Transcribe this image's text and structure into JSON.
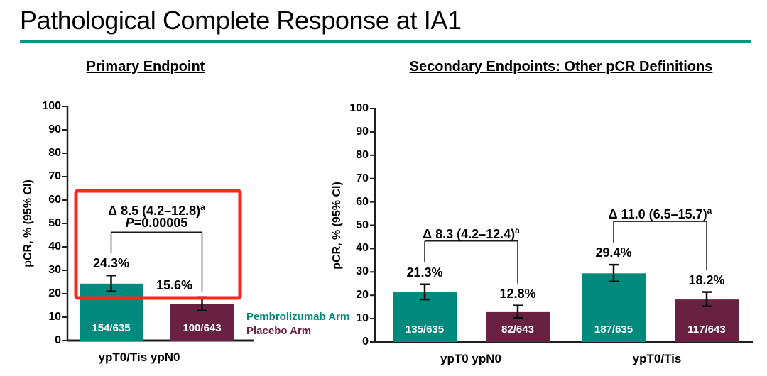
{
  "page": {
    "title": "Pathological Complete Response at IA1"
  },
  "colors": {
    "pembrolizumab_teal": "#008A7E",
    "placebo_maroon": "#682140",
    "title_rule_teal": "#0E8E84",
    "highlight_red": "#F8281C",
    "axis_black": "#1F1F1F",
    "bar_count_text": "#FFFFFF"
  },
  "legend": {
    "position": "between-charts",
    "items": [
      {
        "label": "Pembrolizumab Arm",
        "color": "#008A7E"
      },
      {
        "label": "Placebo Arm",
        "color": "#682140"
      }
    ]
  },
  "chart_data": [
    {
      "type": "bar",
      "title": "Primary Endpoint",
      "ylabel": "pCR, % (95% CI)",
      "ylim": [
        0,
        100
      ],
      "yticks": [
        0,
        10,
        20,
        30,
        40,
        50,
        60,
        70,
        80,
        90,
        100
      ],
      "grid": false,
      "highlight_box": true,
      "groups": [
        {
          "label": "ypT0/Tis ypN0",
          "bars": [
            {
              "series": "Pembrolizumab Arm",
              "value": 24.3,
              "value_label": "24.3%",
              "ci_low": 21.0,
              "ci_high": 27.8,
              "count_label": "154/635"
            },
            {
              "series": "Placebo Arm",
              "value": 15.6,
              "value_label": "15.6%",
              "ci_low": 12.8,
              "ci_high": 18.6,
              "count_label": "100/643"
            }
          ],
          "delta_label": "Δ 8.5 (4.2–12.8)",
          "delta_sup": "a",
          "p_label": "P=0.00005"
        }
      ]
    },
    {
      "type": "bar",
      "title": "Secondary Endpoints: Other pCR Definitions",
      "ylabel": "pCR, % (95% CI)",
      "ylim": [
        0,
        100
      ],
      "yticks": [
        0,
        10,
        20,
        30,
        40,
        50,
        60,
        70,
        80,
        90,
        100
      ],
      "grid": false,
      "highlight_box": false,
      "groups": [
        {
          "label": "ypT0 ypN0",
          "bars": [
            {
              "series": "Pembrolizumab Arm",
              "value": 21.3,
              "value_label": "21.3%",
              "ci_low": 18.2,
              "ci_high": 24.7,
              "count_label": "135/635"
            },
            {
              "series": "Placebo Arm",
              "value": 12.8,
              "value_label": "12.8%",
              "ci_low": 10.3,
              "ci_high": 15.6,
              "count_label": "82/643"
            }
          ],
          "delta_label": "Δ 8.3 (4.2–12.4)",
          "delta_sup": "a",
          "p_label": ""
        },
        {
          "label": "ypT0/Tis",
          "bars": [
            {
              "series": "Pembrolizumab Arm",
              "value": 29.4,
              "value_label": "29.4%",
              "ci_low": 25.9,
              "ci_high": 33.1,
              "count_label": "187/635"
            },
            {
              "series": "Placebo Arm",
              "value": 18.2,
              "value_label": "18.2%",
              "ci_low": 15.3,
              "ci_high": 21.4,
              "count_label": "117/643"
            }
          ],
          "delta_label": "Δ 11.0 (6.5–15.7)",
          "delta_sup": "a",
          "p_label": ""
        }
      ]
    }
  ]
}
